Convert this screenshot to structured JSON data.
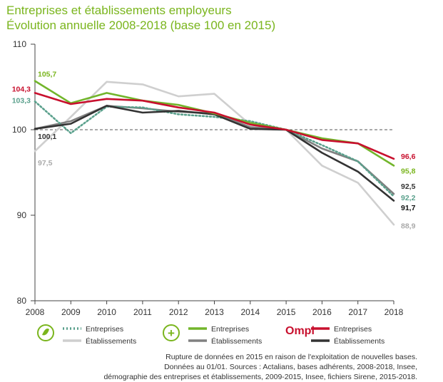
{
  "title_line1": "Entreprises et établissements employeurs",
  "title_line2": "Évolution annuelle 2008-2018 (base 100 en 2015)",
  "chart_data": {
    "type": "line",
    "x": [
      2008,
      2009,
      2010,
      2011,
      2012,
      2013,
      2014,
      2015,
      2016,
      2017,
      2018
    ],
    "ylim": [
      80,
      110
    ],
    "yticks": [
      80,
      90,
      100,
      110
    ],
    "reference_line": 100,
    "grid": false,
    "series": [
      {
        "group": "Ompl",
        "name": "Entreprises",
        "color": "#c8102e",
        "style": "solid",
        "values": [
          104.3,
          103.0,
          103.6,
          103.4,
          102.6,
          102.0,
          100.6,
          100.0,
          98.8,
          98.4,
          96.6
        ]
      },
      {
        "group": "Ompl",
        "name": "Établissements",
        "color": "#333333",
        "style": "solid",
        "values": [
          100.1,
          100.7,
          102.8,
          102.0,
          102.2,
          101.8,
          100.1,
          100.0,
          97.3,
          95.1,
          91.7
        ]
      },
      {
        "group": "green",
        "name": "Entreprises",
        "color": "#72b52b",
        "style": "solid",
        "values": [
          105.7,
          103.1,
          104.3,
          103.4,
          102.9,
          101.9,
          100.8,
          100.0,
          99.0,
          98.4,
          95.8
        ]
      },
      {
        "group": "green",
        "name": "Établissements",
        "color": "#808080",
        "style": "solid",
        "values": [
          100.1,
          101.0,
          102.8,
          102.5,
          102.1,
          101.9,
          100.3,
          100.0,
          97.8,
          96.3,
          92.5
        ]
      },
      {
        "group": "teal",
        "name": "Entreprises",
        "color": "#5aa08c",
        "style": "dotted",
        "values": [
          103.3,
          99.6,
          102.7,
          102.6,
          101.8,
          101.5,
          101.0,
          100.0,
          98.2,
          96.3,
          92.2
        ]
      },
      {
        "group": "teal",
        "name": "Établissements",
        "color": "#cfcfcf",
        "style": "solid",
        "values": [
          97.5,
          101.5,
          105.6,
          105.3,
          103.9,
          104.2,
          100.6,
          100.0,
          95.8,
          93.8,
          88.9
        ]
      }
    ],
    "labels": [
      {
        "text": "105,7",
        "color": "#7ab51d",
        "side": "start",
        "value": 105.7
      },
      {
        "text": "104,3",
        "color": "#c8102e",
        "side": "start",
        "value": 104.3
      },
      {
        "text": "103,3",
        "color": "#5aa08c",
        "side": "start",
        "value": 103.3
      },
      {
        "text": "100,1",
        "color": "#333333",
        "side": "start",
        "value": 100.1
      },
      {
        "text": "97,5",
        "color": "#aaaaaa",
        "side": "start",
        "value": 97.5
      },
      {
        "text": "96,6",
        "color": "#c8102e",
        "side": "end",
        "value": 96.6
      },
      {
        "text": "95,8",
        "color": "#7ab51d",
        "side": "end",
        "value": 95.8
      },
      {
        "text": "92,5",
        "color": "#333333",
        "side": "end",
        "value": 92.5
      },
      {
        "text": "92,2",
        "color": "#5aa08c",
        "side": "end",
        "value": 92.2
      },
      {
        "text": "91,7",
        "color": "#111111",
        "side": "end",
        "value": 91.7
      },
      {
        "text": "88,9",
        "color": "#aaaaaa",
        "side": "end",
        "value": 88.9
      }
    ]
  },
  "legend": {
    "groups": [
      {
        "icon": "leaf-circle-icon",
        "entreprises": "Entreprises",
        "etablissements": "Établissements",
        "ent_color": "#5aa08c",
        "ent_style": "dotted",
        "etab_color": "#cfcfcf"
      },
      {
        "icon": "plus-circle-icon",
        "entreprises": "Entreprises",
        "etablissements": "Établissements",
        "ent_color": "#72b52b",
        "ent_style": "solid",
        "etab_color": "#808080"
      },
      {
        "icon": "ompl-logo",
        "logo_text": "Ompl",
        "entreprises": "Entreprises",
        "etablissements": "Établissements",
        "ent_color": "#c8102e",
        "ent_style": "solid",
        "etab_color": "#333333"
      }
    ]
  },
  "notes": {
    "line1": "Rupture de données en 2015 en raison de l'exploitation de nouvelles bases.",
    "line2": "Données au 01/01. Sources : Actalians, bases adhérents, 2008-2018, Insee,",
    "line3": "démographie des entreprises et établissements, 2009-2015, Insee, fichiers Sirene, 2015-2018."
  }
}
